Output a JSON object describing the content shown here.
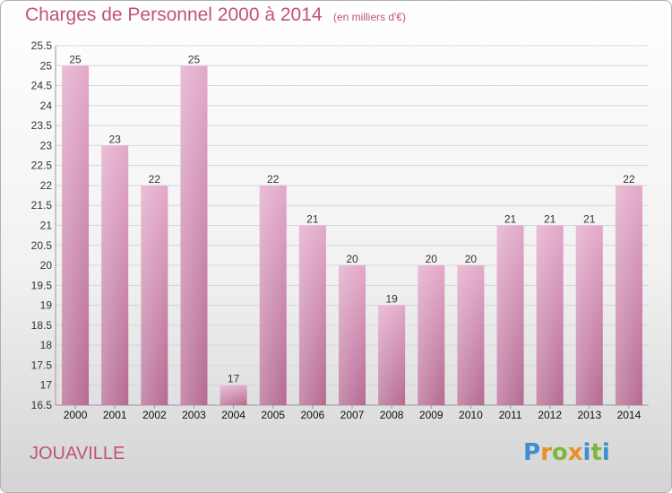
{
  "header": {
    "title": "Charges de Personnel 2000 à 2014",
    "subtitle": "(en milliers d'€)"
  },
  "footer": {
    "commune": "JOUAVILLE",
    "logo_letters": [
      "P",
      "r",
      "o",
      "x",
      "i",
      "t",
      "i"
    ],
    "logo_colors": [
      "#3a8fd0",
      "#e8902a",
      "#7cb83a",
      "#e8902a",
      "#3a8fd0",
      "#7cb83a",
      "#3a8fd0"
    ]
  },
  "colors": {
    "bar_top": "#e3a9ca",
    "bar_bottom": "#b56a92",
    "grid": "#d6d6d6",
    "axis": "#999999",
    "accent": "#c0527a"
  },
  "chart_data": {
    "type": "bar",
    "title": "Charges de Personnel 2000 à 2014",
    "subtitle": "(en milliers d'€)",
    "categories": [
      "2000",
      "2001",
      "2002",
      "2003",
      "2004",
      "2005",
      "2006",
      "2007",
      "2008",
      "2009",
      "2010",
      "2011",
      "2012",
      "2013",
      "2014"
    ],
    "values": [
      25,
      23,
      22,
      25,
      17,
      22,
      21,
      20,
      19,
      20,
      20,
      21,
      21,
      21,
      22
    ],
    "ylim": [
      16.5,
      25.5
    ],
    "yticks": [
      "16.5",
      "17",
      "17.5",
      "18",
      "18.5",
      "19",
      "19.5",
      "20",
      "20.5",
      "21",
      "21.5",
      "22",
      "22.5",
      "23",
      "23.5",
      "24",
      "24.5",
      "25",
      "25.5"
    ],
    "grid": true,
    "legend": "none"
  }
}
